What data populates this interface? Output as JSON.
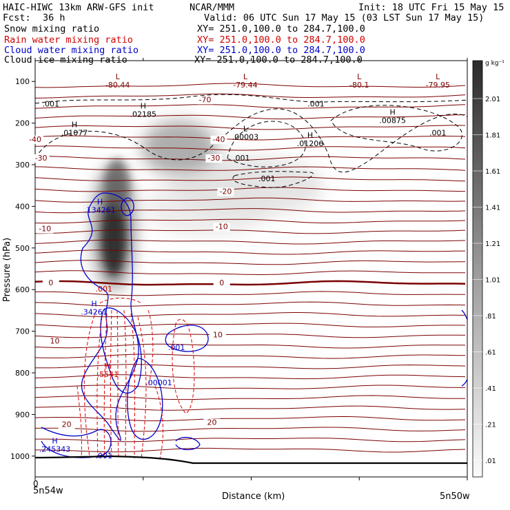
{
  "header": {
    "model": "HAIC-HIWC 13km ARW-GFS init",
    "center": "NCAR/MMM",
    "init": "Init: 18 UTC Fri 15 May 15",
    "fcst_label": "Fcst:",
    "fcst_value": "36 h",
    "valid": "Valid: 06 UTC Sun 17 May 15 (03 LST Sun 17 May 15)",
    "fields": [
      {
        "name": "Snow mixing ratio",
        "xy": "XY= 251.0,100.0 to 284.7,100.0",
        "color": "#000000"
      },
      {
        "name": "Rain water mixing ratio",
        "xy": "XY= 251.0,100.0 to 284.7,100.0",
        "color": "#d00000"
      },
      {
        "name": "Cloud water mixing ratio",
        "xy": "XY= 251.0,100.0 to 284.7,100.0",
        "color": "#0000c8"
      },
      {
        "name": "Cloud ice mixing ratio",
        "xy": "XY= 251.0,100.0 to 284.7,100.0",
        "color": "#000000"
      }
    ]
  },
  "chart_data": {
    "type": "cross-section contour",
    "xlabel": "Distance (km)",
    "ylabel": "Pressure (hPa)",
    "x_start_label": "5n54w",
    "x_end_label": "5n50w",
    "x_zero_label": "0",
    "y_ticks": [
      100,
      200,
      300,
      400,
      500,
      600,
      700,
      800,
      900,
      1000
    ],
    "ylim": [
      1050,
      50
    ],
    "colorbar": {
      "unit": "g kg⁻¹",
      "labels": [
        "2.01",
        "1.81",
        "1.61",
        "1.41",
        "1.21",
        "1.01",
        ".81",
        ".61",
        ".41",
        ".21",
        ".01"
      ]
    },
    "temperature_labels": [
      {
        "text": "-70",
        "x": 0.865,
        "p": 150
      },
      {
        "text": "-40",
        "x": 0.0,
        "p": 245
      },
      {
        "text": "-40",
        "x": 0.935,
        "p": 245
      },
      {
        "text": "-30",
        "x": 0.03,
        "p": 290
      },
      {
        "text": "-30",
        "x": 0.91,
        "p": 290
      },
      {
        "text": "-20",
        "x": 0.97,
        "p": 370
      },
      {
        "text": "-10",
        "x": 0.05,
        "p": 460
      },
      {
        "text": "-10",
        "x": 0.95,
        "p": 455
      },
      {
        "text": "0",
        "x": 0.08,
        "p": 590
      },
      {
        "text": "0",
        "x": 0.95,
        "p": 590
      },
      {
        "text": "10",
        "x": 0.1,
        "p": 730
      },
      {
        "text": "10",
        "x": 0.93,
        "p": 715
      },
      {
        "text": "20",
        "x": 0.16,
        "p": 930
      },
      {
        "text": "20",
        "x": 0.9,
        "p": 925
      }
    ],
    "extrema_labels": [
      {
        "kind": "L",
        "value": "-80.44",
        "x": 0.42,
        "p": 110,
        "color": "#800000"
      },
      {
        "kind": "L",
        "value": "-79.44",
        "x": 1.07,
        "p": 110,
        "color": "#800000"
      },
      {
        "kind": "L",
        "value": "-80.1",
        "x": 1.65,
        "p": 110,
        "color": "#800000"
      },
      {
        "kind": "L",
        "value": "-79.95",
        "x": 2.05,
        "p": 110,
        "color": "#800000"
      },
      {
        "kind": "H",
        "value": ".02185",
        "x": 0.55,
        "p": 180,
        "color": "#000000"
      },
      {
        "kind": "H",
        "value": ".01077",
        "x": 0.2,
        "p": 225,
        "color": "#000000"
      },
      {
        "kind": "L",
        "value": ".00003",
        "x": 1.07,
        "p": 235,
        "color": "#000000"
      },
      {
        "kind": "H",
        "value": ".01206",
        "x": 1.4,
        "p": 250,
        "color": "#000000"
      },
      {
        "kind": "H",
        "value": ".00875",
        "x": 1.82,
        "p": 195,
        "color": "#000000"
      },
      {
        "kind": "H",
        "value": ".134261",
        "x": 0.33,
        "p": 410,
        "color": "#0000c8"
      },
      {
        "kind": "H",
        "value": ".34261",
        "x": 0.3,
        "p": 655,
        "color": "#0000c8"
      },
      {
        "kind": "H",
        "value": ".5541",
        "x": 0.37,
        "p": 805,
        "color": "#d00000"
      },
      {
        "kind": "H",
        "value": ".245343",
        "x": 0.1,
        "p": 985,
        "color": "#0000c8"
      }
    ],
    "contour_value_labels": [
      {
        "text": ".001",
        "x": 0.08,
        "p": 160,
        "color": "#000000"
      },
      {
        "text": ".001",
        "x": 1.43,
        "p": 160,
        "color": "#000000"
      },
      {
        "text": ".001",
        "x": 2.05,
        "p": 230,
        "color": "#000000"
      },
      {
        "text": ".001",
        "x": 1.05,
        "p": 290,
        "color": "#000000"
      },
      {
        "text": ".001",
        "x": 1.18,
        "p": 340,
        "color": "#000000"
      },
      {
        "text": ".001",
        "x": 0.35,
        "p": 605,
        "color": "#d00000"
      },
      {
        "text": ".001",
        "x": 0.72,
        "p": 745,
        "color": "#0000c8"
      },
      {
        "text": ".00001",
        "x": 0.63,
        "p": 830,
        "color": "#0000c8"
      },
      {
        "text": ".001",
        "x": 0.35,
        "p": 1005,
        "color": "#0000c8"
      }
    ]
  }
}
